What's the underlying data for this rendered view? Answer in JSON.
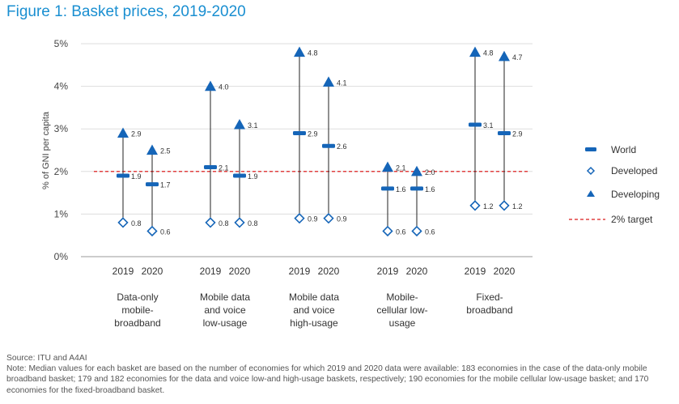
{
  "title": "Figure 1: Basket prices, 2019-2020",
  "source": "Source: ITU and A4AI",
  "note": "Note: Median values for each basket are based on the number of economies for which 2019 and 2020 data were available: 183 economies in the case of the data-only mobile broadband basket; 179 and 182 economies for the data and voice low-and high-usage baskets, respectively; 190 economies for the mobile cellular low-usage basket; and 170 economies for the fixed-broadband basket.",
  "colors": {
    "accent": "#1a8fd1",
    "marker": "#1565b8",
    "target": "#e04040"
  },
  "chart_data": {
    "type": "scatter",
    "ylabel": "% of GNI per capita",
    "ylim": [
      0,
      5
    ],
    "yticks": [
      "0%",
      "1%",
      "2%",
      "3%",
      "4%",
      "5%"
    ],
    "grid": true,
    "legend_position": "right",
    "legend": {
      "world": "World",
      "developed": "Developed",
      "developing": "Developing",
      "target": "2% target"
    },
    "target": 2,
    "categories": [
      {
        "lines": [
          "Data-only",
          "mobile-",
          "broadband"
        ],
        "years": [
          {
            "year": "2019",
            "world": 1.9,
            "developed": 0.8,
            "developing": 2.9
          },
          {
            "year": "2020",
            "world": 1.7,
            "developed": 0.6,
            "developing": 2.5
          }
        ]
      },
      {
        "lines": [
          "Mobile data",
          "and voice",
          "low-usage"
        ],
        "years": [
          {
            "year": "2019",
            "world": 2.1,
            "developed": 0.8,
            "developing": 4.0
          },
          {
            "year": "2020",
            "world": 1.9,
            "developed": 0.8,
            "developing": 3.1
          }
        ]
      },
      {
        "lines": [
          "Mobile data",
          "and voice",
          "high-usage"
        ],
        "years": [
          {
            "year": "2019",
            "world": 2.9,
            "developed": 0.9,
            "developing": 4.8
          },
          {
            "year": "2020",
            "world": 2.6,
            "developed": 0.9,
            "developing": 4.1
          }
        ]
      },
      {
        "lines": [
          "Mobile-",
          "cellular low-",
          "usage"
        ],
        "years": [
          {
            "year": "2019",
            "world": 1.6,
            "developed": 0.6,
            "developing": 2.1
          },
          {
            "year": "2020",
            "world": 1.6,
            "developed": 0.6,
            "developing": 2.0
          }
        ]
      },
      {
        "lines": [
          "Fixed-",
          "broadband"
        ],
        "years": [
          {
            "year": "2019",
            "world": 3.1,
            "developed": 1.2,
            "developing": 4.8
          },
          {
            "year": "2020",
            "world": 2.9,
            "developed": 1.2,
            "developing": 4.7
          }
        ]
      }
    ]
  }
}
